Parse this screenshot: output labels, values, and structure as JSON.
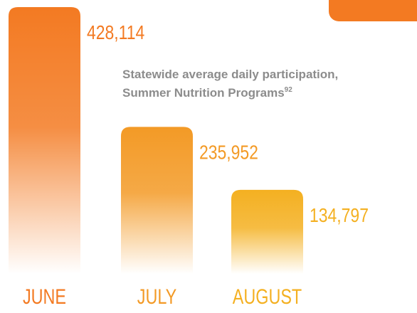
{
  "chart_data": {
    "type": "bar",
    "title_lines": [
      "Statewide average daily participation,",
      "Summer Nutrition Programs"
    ],
    "footnote": "92",
    "categories": [
      "JUNE",
      "JULY",
      "AUGUST"
    ],
    "values": [
      428114,
      235952,
      134797
    ],
    "value_labels": [
      "428,114",
      "235,952",
      "134,797"
    ],
    "colors": [
      "#f37a22",
      "#f39a26",
      "#f4b021"
    ]
  }
}
